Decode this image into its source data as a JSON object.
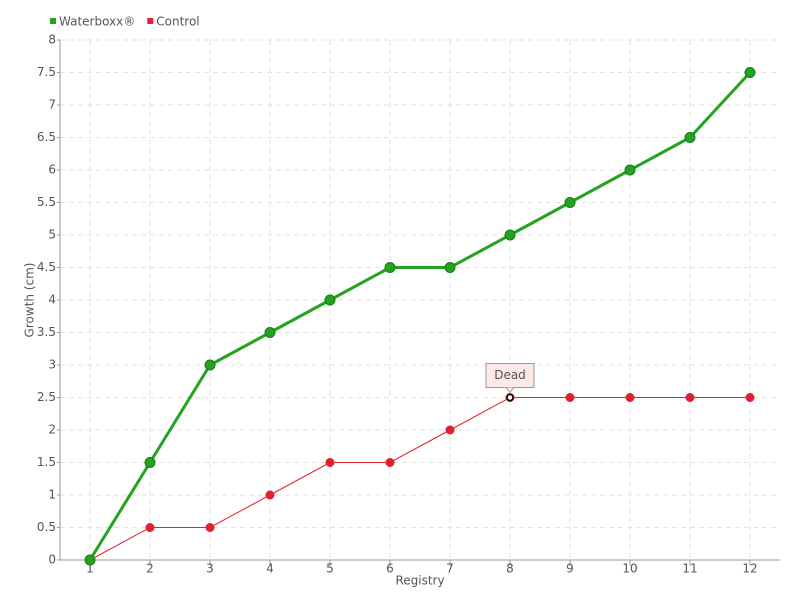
{
  "chart_data": {
    "type": "line",
    "categories": [
      "1",
      "2",
      "3",
      "4",
      "5",
      "6",
      "7",
      "8",
      "9",
      "10",
      "11",
      "12"
    ],
    "series": [
      {
        "name": "Waterboxx®",
        "color": "#23a31f",
        "values": [
          0,
          1.5,
          3,
          3.5,
          4,
          4.5,
          4.5,
          5,
          5.5,
          6,
          6.5,
          7.5
        ]
      },
      {
        "name": "Control",
        "color": "#e0212e",
        "values": [
          0,
          0.5,
          0.5,
          1,
          1.5,
          1.5,
          2,
          2.5,
          2.5,
          2.5,
          2.5,
          2.5
        ]
      }
    ],
    "ylim": [
      0,
      8
    ],
    "yticks": [
      0,
      0.5,
      1,
      1.5,
      2,
      2.5,
      3,
      3.5,
      4,
      4.5,
      5,
      5.5,
      6,
      6.5,
      7,
      7.5,
      8
    ],
    "ylabel": "Growth (cm)",
    "xlabel": "Registry",
    "grid": true,
    "legend": "top-left",
    "annotation": {
      "text": "Dead",
      "series": "Control",
      "at": "8"
    }
  }
}
